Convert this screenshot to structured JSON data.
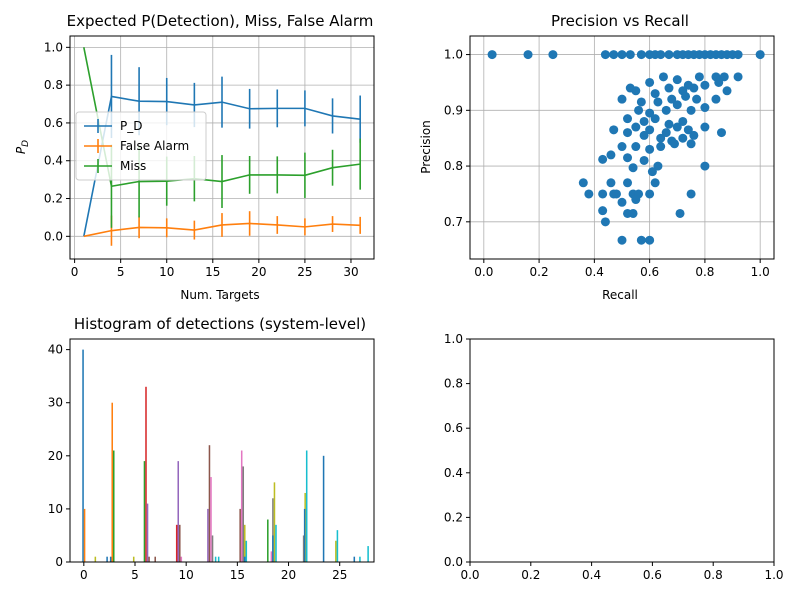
{
  "figure": {
    "background": "#ffffff"
  },
  "chart_data": [
    {
      "id": "detection-panel",
      "type": "line",
      "title": "Expected P(Detection), Miss, False Alarm",
      "xlabel": "Num. Targets",
      "ylabel": "P_D",
      "ylabel_main": "P",
      "ylabel_sub": "D",
      "xlim": [
        -0.5,
        32.5
      ],
      "ylim": [
        -0.12,
        1.06
      ],
      "xticks": [
        0,
        5,
        10,
        15,
        20,
        25,
        30
      ],
      "yticks": [
        0.0,
        0.2,
        0.4,
        0.6,
        0.8,
        1.0
      ],
      "ytick_labels": [
        "0.0",
        "0.2",
        "0.4",
        "0.6",
        "0.8",
        "1.0"
      ],
      "grid": true,
      "legend": "center-left",
      "x": [
        1,
        4,
        7,
        10,
        13,
        16,
        19,
        22,
        25,
        28,
        31
      ],
      "series": [
        {
          "name": "P_D",
          "color": "#1f77b4",
          "values": [
            0.0,
            0.74,
            0.715,
            0.713,
            0.695,
            0.71,
            0.675,
            0.677,
            0.677,
            0.637,
            0.62
          ],
          "err": [
            0.0,
            0.22,
            0.18,
            0.125,
            0.117,
            0.135,
            0.105,
            0.1,
            0.095,
            0.093,
            0.125
          ]
        },
        {
          "name": "False Alarm",
          "color": "#ff7f0e",
          "values": [
            0.0,
            0.03,
            0.047,
            0.045,
            0.033,
            0.06,
            0.068,
            0.06,
            0.05,
            0.065,
            0.058
          ],
          "err": [
            0.0,
            0.08,
            0.057,
            0.05,
            0.05,
            0.063,
            0.065,
            0.047,
            0.045,
            0.042,
            0.045
          ]
        },
        {
          "name": "Miss",
          "color": "#2ca02c",
          "values": [
            1.0,
            0.265,
            0.29,
            0.292,
            0.305,
            0.29,
            0.325,
            0.325,
            0.323,
            0.363,
            0.382
          ],
          "err": [
            0.0,
            0.22,
            0.19,
            0.13,
            0.12,
            0.14,
            0.1,
            0.098,
            0.12,
            0.095,
            0.135
          ]
        }
      ]
    },
    {
      "id": "precision-recall-panel",
      "type": "scatter",
      "title": "Precision vs Recall",
      "xlabel": "Recall",
      "ylabel": "Precision",
      "xlim": [
        -0.05,
        1.05
      ],
      "ylim": [
        0.6333,
        1.0333
      ],
      "xticks": [
        0.0,
        0.2,
        0.4,
        0.6,
        0.8,
        1.0
      ],
      "xtick_labels": [
        "0.0",
        "0.2",
        "0.4",
        "0.6",
        "0.8",
        "1.0"
      ],
      "yticks": [
        0.7,
        0.8,
        0.9,
        1.0
      ],
      "ytick_labels": [
        "0.7",
        "0.8",
        "0.9",
        "1.0"
      ],
      "grid": true,
      "color": "#1f77b4",
      "points": [
        [
          0.03,
          1.0
        ],
        [
          0.16,
          1.0
        ],
        [
          0.25,
          1.0
        ],
        [
          0.44,
          1.0
        ],
        [
          0.47,
          1.0
        ],
        [
          0.5,
          1.0
        ],
        [
          0.53,
          1.0
        ],
        [
          0.57,
          1.0
        ],
        [
          0.6,
          1.0
        ],
        [
          0.62,
          1.0
        ],
        [
          0.64,
          1.0
        ],
        [
          0.67,
          1.0
        ],
        [
          0.7,
          1.0
        ],
        [
          0.72,
          1.0
        ],
        [
          0.74,
          1.0
        ],
        [
          0.76,
          1.0
        ],
        [
          0.78,
          1.0
        ],
        [
          0.8,
          1.0
        ],
        [
          0.82,
          1.0
        ],
        [
          0.84,
          1.0
        ],
        [
          0.86,
          1.0
        ],
        [
          0.88,
          1.0
        ],
        [
          0.9,
          1.0
        ],
        [
          0.92,
          1.0
        ],
        [
          1.0,
          1.0
        ],
        [
          0.53,
          0.94
        ],
        [
          0.6,
          0.95
        ],
        [
          0.65,
          0.96
        ],
        [
          0.7,
          0.955
        ],
        [
          0.74,
          0.945
        ],
        [
          0.78,
          0.96
        ],
        [
          0.84,
          0.96
        ],
        [
          0.87,
          0.96
        ],
        [
          0.92,
          0.96
        ],
        [
          0.55,
          0.935
        ],
        [
          0.62,
          0.93
        ],
        [
          0.67,
          0.94
        ],
        [
          0.72,
          0.935
        ],
        [
          0.76,
          0.94
        ],
        [
          0.8,
          0.945
        ],
        [
          0.85,
          0.95
        ],
        [
          0.88,
          0.935
        ],
        [
          0.5,
          0.92
        ],
        [
          0.57,
          0.915
        ],
        [
          0.63,
          0.915
        ],
        [
          0.68,
          0.92
        ],
        [
          0.73,
          0.925
        ],
        [
          0.77,
          0.92
        ],
        [
          0.84,
          0.92
        ],
        [
          0.56,
          0.9
        ],
        [
          0.6,
          0.895
        ],
        [
          0.66,
          0.9
        ],
        [
          0.7,
          0.91
        ],
        [
          0.75,
          0.9
        ],
        [
          0.8,
          0.905
        ],
        [
          0.52,
          0.885
        ],
        [
          0.58,
          0.88
        ],
        [
          0.62,
          0.885
        ],
        [
          0.67,
          0.875
        ],
        [
          0.72,
          0.88
        ],
        [
          0.55,
          0.87
        ],
        [
          0.6,
          0.865
        ],
        [
          0.66,
          0.86
        ],
        [
          0.7,
          0.87
        ],
        [
          0.74,
          0.865
        ],
        [
          0.8,
          0.87
        ],
        [
          0.47,
          0.865
        ],
        [
          0.52,
          0.86
        ],
        [
          0.58,
          0.855
        ],
        [
          0.64,
          0.85
        ],
        [
          0.68,
          0.845
        ],
        [
          0.72,
          0.85
        ],
        [
          0.76,
          0.855
        ],
        [
          0.86,
          0.86
        ],
        [
          0.5,
          0.835
        ],
        [
          0.55,
          0.835
        ],
        [
          0.6,
          0.83
        ],
        [
          0.64,
          0.835
        ],
        [
          0.69,
          0.84
        ],
        [
          0.75,
          0.84
        ],
        [
          0.46,
          0.82
        ],
        [
          0.52,
          0.815
        ],
        [
          0.58,
          0.81
        ],
        [
          0.63,
          0.8
        ],
        [
          0.8,
          0.8
        ],
        [
          0.43,
          0.812
        ],
        [
          0.54,
          0.797
        ],
        [
          0.61,
          0.79
        ],
        [
          0.46,
          0.77
        ],
        [
          0.52,
          0.77
        ],
        [
          0.62,
          0.77
        ],
        [
          0.36,
          0.77
        ],
        [
          0.38,
          0.75
        ],
        [
          0.43,
          0.75
        ],
        [
          0.47,
          0.75
        ],
        [
          0.48,
          0.75
        ],
        [
          0.54,
          0.75
        ],
        [
          0.56,
          0.75
        ],
        [
          0.6,
          0.75
        ],
        [
          0.75,
          0.75
        ],
        [
          0.5,
          0.735
        ],
        [
          0.55,
          0.74
        ],
        [
          0.43,
          0.72
        ],
        [
          0.52,
          0.715
        ],
        [
          0.54,
          0.715
        ],
        [
          0.71,
          0.715
        ],
        [
          0.44,
          0.7
        ],
        [
          0.5,
          0.667
        ],
        [
          0.57,
          0.667
        ],
        [
          0.6,
          0.667
        ]
      ]
    },
    {
      "id": "histogram-panel",
      "type": "bar",
      "title": "Histogram of detections (system-level)",
      "xlim": [
        -1.35,
        28.35
      ],
      "ylim": [
        0,
        42
      ],
      "xticks": [
        0,
        5,
        10,
        15,
        20,
        25
      ],
      "yticks": [
        0,
        10,
        20,
        30,
        40
      ],
      "grid": false,
      "group_centers": [
        0.6,
        3.3,
        6.3,
        9.3,
        12.2,
        15.2,
        18.1,
        21.1,
        24.1,
        27.1
      ],
      "series": [
        {
          "name": "",
          "color": "#1f77b4",
          "values": [
            40,
            1,
            0,
            0,
            0,
            0,
            0,
            0,
            20,
            1
          ]
        },
        {
          "name": "",
          "color": "#ff7f0e",
          "values": [
            10,
            30,
            0,
            0,
            0,
            0,
            0,
            0,
            0,
            0
          ]
        },
        {
          "name": "",
          "color": "#2ca02c",
          "values": [
            0,
            21,
            19,
            0,
            0,
            0,
            0,
            0,
            0,
            0
          ]
        },
        {
          "name": "",
          "color": "#d62728",
          "values": [
            0,
            0,
            33,
            7,
            0,
            0,
            0,
            0,
            0,
            0
          ]
        },
        {
          "name": "",
          "color": "#9467bd",
          "values": [
            0,
            0,
            11,
            19,
            10,
            0,
            0,
            0,
            0,
            0
          ]
        },
        {
          "name": "",
          "color": "#8c564b",
          "values": [
            0,
            0,
            1,
            7,
            22,
            10,
            0,
            0,
            0,
            0
          ]
        },
        {
          "name": "",
          "color": "#e377c2",
          "values": [
            0,
            0,
            0,
            1,
            16,
            21,
            2,
            0,
            0,
            0
          ]
        },
        {
          "name": "",
          "color": "#7f7f7f",
          "values": [
            0,
            0,
            0,
            0,
            5,
            18,
            12,
            5,
            0,
            0
          ]
        },
        {
          "name": "",
          "color": "#bcbd22",
          "values": [
            1,
            0,
            0,
            0,
            0,
            7,
            15,
            13,
            4,
            0
          ]
        },
        {
          "name": "",
          "color": "#17becf",
          "values": [
            0,
            0,
            0,
            0,
            1,
            4,
            7,
            21,
            6,
            3
          ]
        }
      ],
      "extra_bars": [
        {
          "x": 17.9,
          "value": 8,
          "color": "#2ca02c"
        },
        {
          "x": 18.4,
          "value": 5,
          "color": "#1f77b4"
        },
        {
          "x": 21.5,
          "value": 10,
          "color": "#1f77b4"
        },
        {
          "x": 15.65,
          "value": 1,
          "color": "#1f77b4"
        },
        {
          "x": 13.1,
          "value": 1,
          "color": "#17becf"
        },
        {
          "x": 4.8,
          "value": 1,
          "color": "#bcbd22"
        },
        {
          "x": 2.2,
          "value": 1,
          "color": "#1f77b4"
        },
        {
          "x": 6.9,
          "value": 1,
          "color": "#8c564b"
        },
        {
          "x": 26.9,
          "value": 1,
          "color": "#17becf"
        }
      ]
    },
    {
      "id": "empty-panel",
      "type": "line",
      "title": "",
      "xlim": [
        0,
        1
      ],
      "ylim": [
        0,
        1
      ],
      "xticks": [
        0.0,
        0.2,
        0.4,
        0.6,
        0.8,
        1.0
      ],
      "xtick_labels": [
        "0.0",
        "0.2",
        "0.4",
        "0.6",
        "0.8",
        "1.0"
      ],
      "yticks": [
        0.0,
        0.2,
        0.4,
        0.6,
        0.8,
        1.0
      ],
      "ytick_labels": [
        "0.0",
        "0.2",
        "0.4",
        "0.6",
        "0.8",
        "1.0"
      ],
      "grid": false,
      "series": []
    }
  ]
}
